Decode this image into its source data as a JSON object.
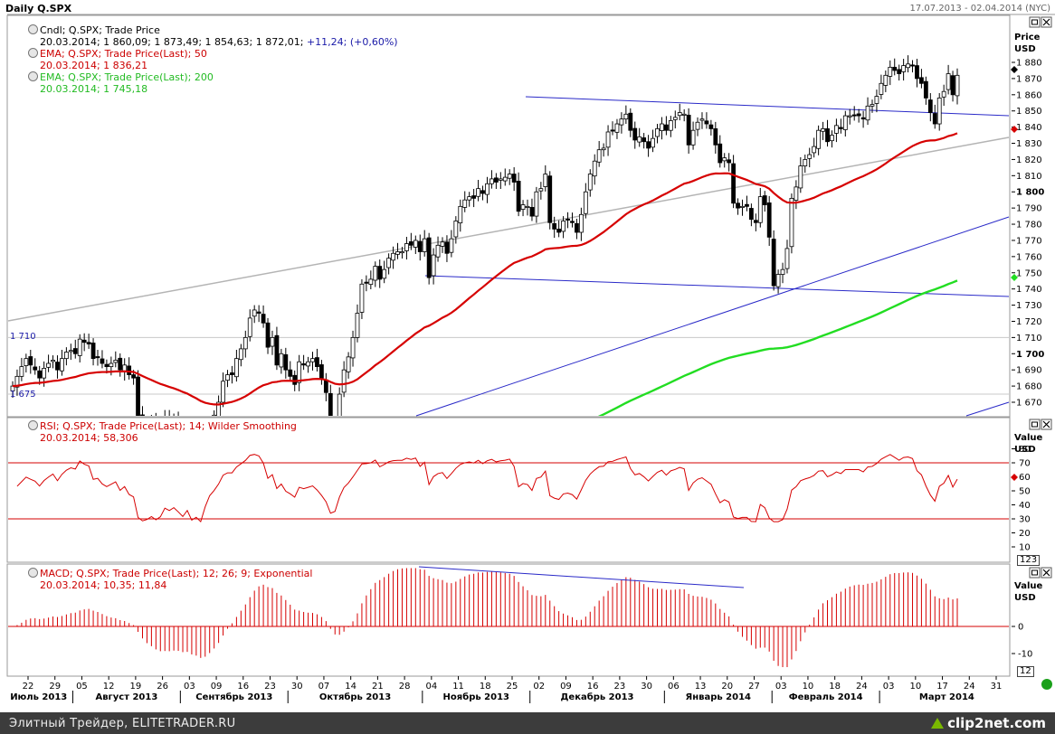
{
  "window": {
    "title": "Daily Q.SPX",
    "date_range": "17.07.2013 - 02.04.2014 (NYC)"
  },
  "colors": {
    "candle": "#000000",
    "ema50": "#d60000",
    "ema200": "#22dd22",
    "rsi": "#d60000",
    "macd": "#d60000",
    "trend_blue": "#2a2ac8",
    "trend_gray": "#b4b4b4",
    "label_blue": "#1a1aa8",
    "label_red": "#cc0000",
    "label_green": "#22bb22"
  },
  "price_panel": {
    "legend": [
      {
        "icon": "candle-icon",
        "line1": "Cndl; Q.SPX; Trade Price",
        "line2": "20.03.2014; 1 860,09; 1 873,49; 1 854,63; 1 872,01;",
        "line2_extra": "+11,24; (+0,60%)"
      },
      {
        "icon": "ema-icon",
        "line1": "EMA; Q.SPX; Trade Price(Last);  50",
        "line2": "20.03.2014; 1 836,21"
      },
      {
        "icon": "ema-icon",
        "line1": "EMA; Q.SPX; Trade Price(Last);  200",
        "line2": "20.03.2014; 1 745,18"
      }
    ],
    "axis_title_1": "Price",
    "axis_title_2": "USD",
    "left_labels": [
      {
        "text": "1 710",
        "value": 1710
      },
      {
        "text": "1 675",
        "value": 1675
      }
    ]
  },
  "rsi_panel": {
    "legend_line1": "RSI; Q.SPX; Trade Price(Last);  14; Wilder Smoothing",
    "legend_line2": "20.03.2014; 58,306",
    "axis_title_1": "Value",
    "axis_title_2": "USD",
    "scroll_badge": "123"
  },
  "macd_panel": {
    "legend_line1": "MACD; Q.SPX; Trade Price(Last);  12; 26; 9; Exponential",
    "legend_line2": "20.03.2014; 10,35; 11,84",
    "axis_title_1": "Value",
    "axis_title_2": "USD",
    "scroll_badge": "12"
  },
  "x_axis": {
    "day_ticks": [
      "22",
      "29",
      "05",
      "12",
      "19",
      "26",
      "03",
      "09",
      "16",
      "23",
      "30",
      "07",
      "14",
      "21",
      "28",
      "04",
      "11",
      "18",
      "25",
      "02",
      "09",
      "16",
      "23",
      "30",
      "06",
      "13",
      "20",
      "27",
      "03",
      "10",
      "18",
      "24",
      "03",
      "10",
      "17",
      "24",
      "31"
    ],
    "months": [
      "Июль 2013",
      "Август 2013",
      "Сентябрь 2013",
      "Октябрь 2013",
      "Ноябрь 2013",
      "Декабрь 2013",
      "Январь 2014",
      "Февраль 2014",
      "Март 2014"
    ]
  },
  "footer": {
    "text": "Элитный Трейдер, ELITETRADER.RU",
    "logo": "clip2net.com"
  },
  "chart_data": [
    {
      "type": "candlestick",
      "title": "Daily Q.SPX",
      "ylabel": "Price USD",
      "ylim": [
        1662,
        1897
      ],
      "y_ticks": [
        1670,
        1680,
        1690,
        1700,
        1710,
        1720,
        1730,
        1740,
        1750,
        1760,
        1770,
        1780,
        1790,
        1800,
        1810,
        1820,
        1830,
        1840,
        1850,
        1860,
        1870,
        1880
      ],
      "candles_close": [
        1680,
        1686,
        1692,
        1697,
        1693,
        1690,
        1685,
        1691,
        1694,
        1696,
        1690,
        1697,
        1701,
        1702,
        1700,
        1709,
        1707,
        1706,
        1697,
        1698,
        1694,
        1692,
        1694,
        1696,
        1690,
        1693,
        1687,
        1685,
        1661,
        1655,
        1656,
        1658,
        1653,
        1655,
        1661,
        1658,
        1660,
        1655,
        1649,
        1653,
        1639,
        1641,
        1633,
        1645,
        1656,
        1662,
        1670,
        1683,
        1687,
        1687,
        1697,
        1703,
        1710,
        1722,
        1727,
        1725,
        1719,
        1704,
        1710,
        1693,
        1700,
        1690,
        1686,
        1681,
        1695,
        1693,
        1695,
        1697,
        1692,
        1685,
        1676,
        1655,
        1657,
        1675,
        1690,
        1698,
        1710,
        1725,
        1743,
        1744,
        1746,
        1754,
        1746,
        1752,
        1759,
        1762,
        1763,
        1763,
        1768,
        1767,
        1770,
        1763,
        1771,
        1747,
        1761,
        1767,
        1769,
        1762,
        1771,
        1782,
        1791,
        1795,
        1797,
        1796,
        1802,
        1799,
        1805,
        1808,
        1806,
        1808,
        1809,
        1811,
        1806,
        1788,
        1792,
        1791,
        1785,
        1800,
        1802,
        1811,
        1781,
        1777,
        1775,
        1782,
        1783,
        1781,
        1775,
        1786,
        1800,
        1811,
        1819,
        1826,
        1827,
        1837,
        1838,
        1842,
        1845,
        1848,
        1838,
        1832,
        1834,
        1831,
        1827,
        1833,
        1839,
        1842,
        1838,
        1844,
        1846,
        1849,
        1848,
        1829,
        1838,
        1843,
        1845,
        1842,
        1839,
        1829,
        1818,
        1821,
        1818,
        1793,
        1790,
        1791,
        1791,
        1783,
        1781,
        1797,
        1792,
        1772,
        1742,
        1749,
        1752,
        1765,
        1796,
        1803,
        1816,
        1820,
        1823,
        1828,
        1838,
        1839,
        1831,
        1835,
        1841,
        1839,
        1847,
        1847,
        1847,
        1847,
        1845,
        1853,
        1854,
        1859,
        1867,
        1872,
        1877,
        1875,
        1873,
        1878,
        1879,
        1878,
        1870,
        1867,
        1858,
        1849,
        1842,
        1858,
        1862,
        1873,
        1860,
        1872
      ],
      "indicators": [
        {
          "name": "EMA 50",
          "last_value": 1836.21
        },
        {
          "name": "EMA 200",
          "last_value": 1745.18
        }
      ],
      "trendlines": [
        "upper resistance",
        "lower support",
        "rising support",
        "long-term channel"
      ]
    },
    {
      "type": "line",
      "title": "RSI 14 Wilder Smoothing",
      "ylabel": "Value USD",
      "ylim": [
        3,
        87
      ],
      "y_ticks": [
        10,
        20,
        30,
        40,
        50,
        60,
        70,
        80
      ],
      "reference_lines": [
        30,
        70
      ],
      "last_value": 58.306
    },
    {
      "type": "bar",
      "title": "MACD 12 26 9 Exponential",
      "ylabel": "Value USD",
      "ylim": [
        -16,
        22
      ],
      "y_ticks": [
        -10,
        0
      ],
      "last_values": [
        10.35,
        11.84
      ]
    }
  ]
}
